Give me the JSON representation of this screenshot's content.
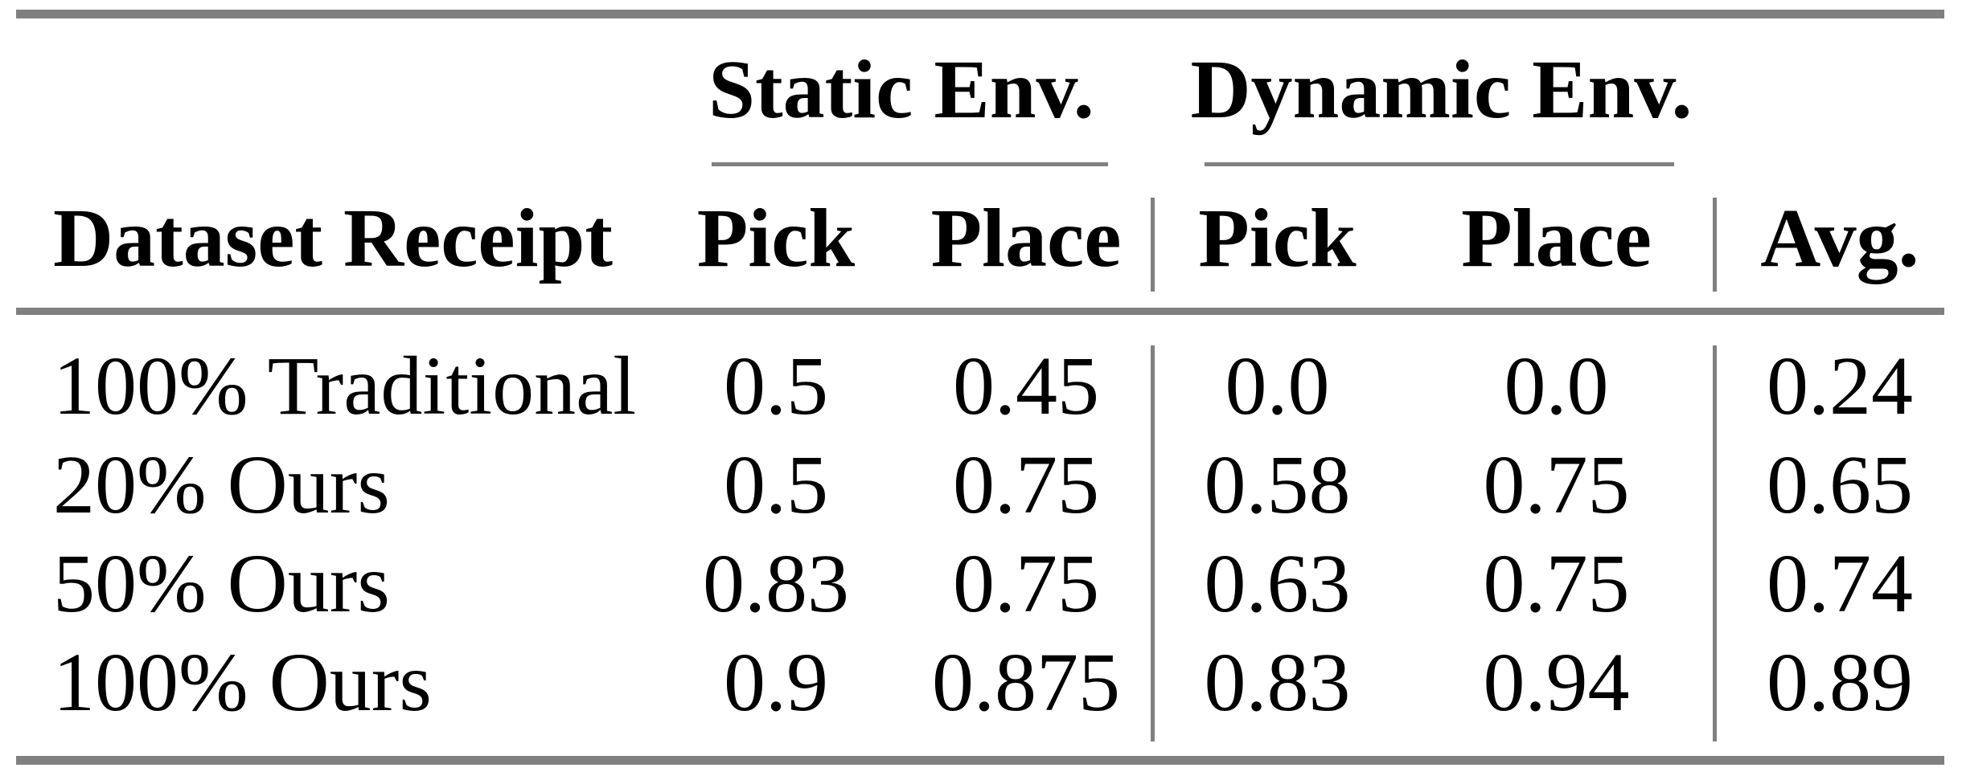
{
  "table": {
    "groups": [
      {
        "label": "Static Env."
      },
      {
        "label": "Dynamic Env."
      }
    ],
    "columns": [
      "Dataset Receipt",
      "Pick",
      "Place",
      "Pick",
      "Place",
      "Avg."
    ],
    "rows": [
      {
        "label": "100% Traditional",
        "values": [
          "0.5",
          "0.45",
          "0.0",
          "0.0",
          "0.24"
        ]
      },
      {
        "label": "20% Ours",
        "values": [
          "0.5",
          "0.75",
          "0.58",
          "0.75",
          "0.65"
        ]
      },
      {
        "label": "50% Ours",
        "values": [
          "0.83",
          "0.75",
          "0.63",
          "0.75",
          "0.74"
        ]
      },
      {
        "label": "100% Ours",
        "values": [
          "0.9",
          "0.875",
          "0.83",
          "0.94",
          "0.89"
        ]
      }
    ]
  },
  "colors": {
    "rule_gray": "#808080",
    "text": "#000000",
    "background": "#ffffff"
  }
}
